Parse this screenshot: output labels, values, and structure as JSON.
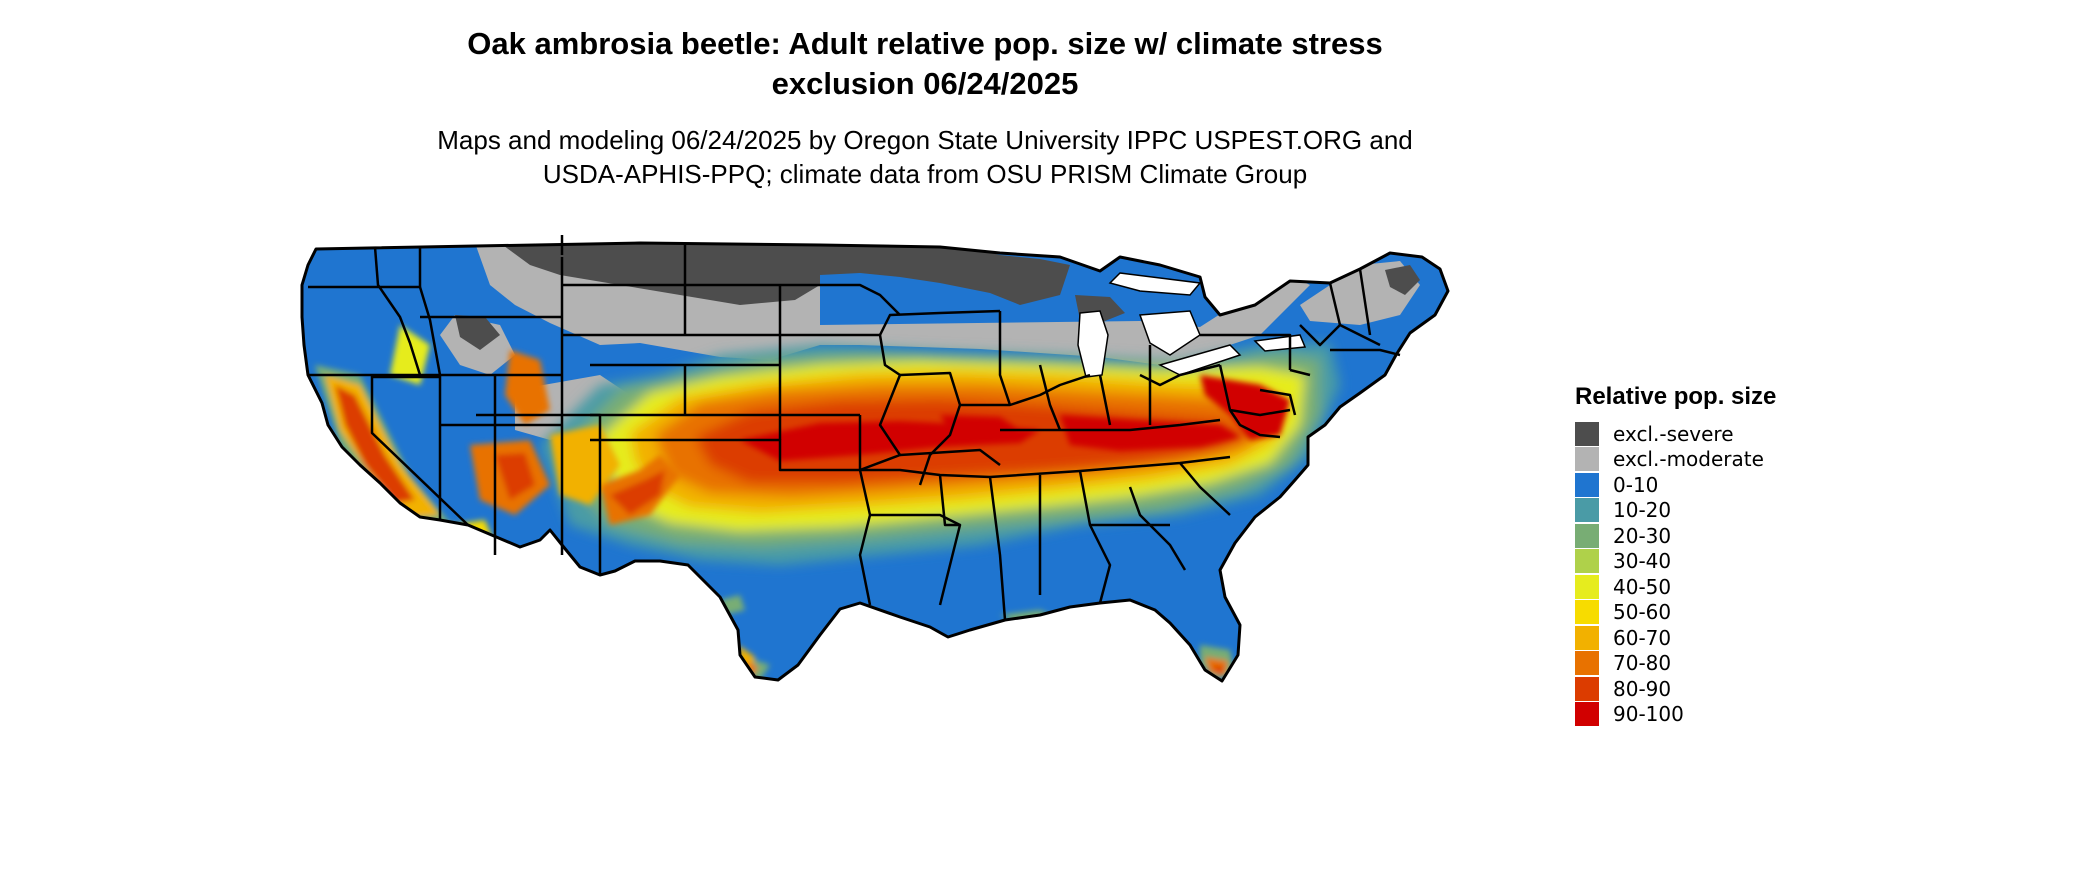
{
  "title_line1": "Oak ambrosia beetle: Adult relative pop. size w/ climate stress",
  "title_line2": "exclusion 06/24/2025",
  "subtitle_line1": "Maps and modeling 06/24/2025 by Oregon State University IPPC USPEST.ORG and",
  "subtitle_line2": "USDA-APHIS-PPQ; climate data from OSU PRISM Climate Group",
  "legend": {
    "title": "Relative pop. size",
    "items": [
      {
        "label": "excl.-severe",
        "color": "#4d4d4d"
      },
      {
        "label": "excl.-moderate",
        "color": "#b3b3b3"
      },
      {
        "label": "0-10",
        "color": "#1f75d0"
      },
      {
        "label": "10-20",
        "color": "#4a9ba6"
      },
      {
        "label": "20-30",
        "color": "#78ad74"
      },
      {
        "label": "30-40",
        "color": "#afd14a"
      },
      {
        "label": "40-50",
        "color": "#e6ec1e"
      },
      {
        "label": "50-60",
        "color": "#f7dc00"
      },
      {
        "label": "60-70",
        "color": "#f2b100"
      },
      {
        "label": "70-80",
        "color": "#e87200"
      },
      {
        "label": "80-90",
        "color": "#dc3c00"
      },
      {
        "label": "90-100",
        "color": "#d10000"
      }
    ]
  }
}
